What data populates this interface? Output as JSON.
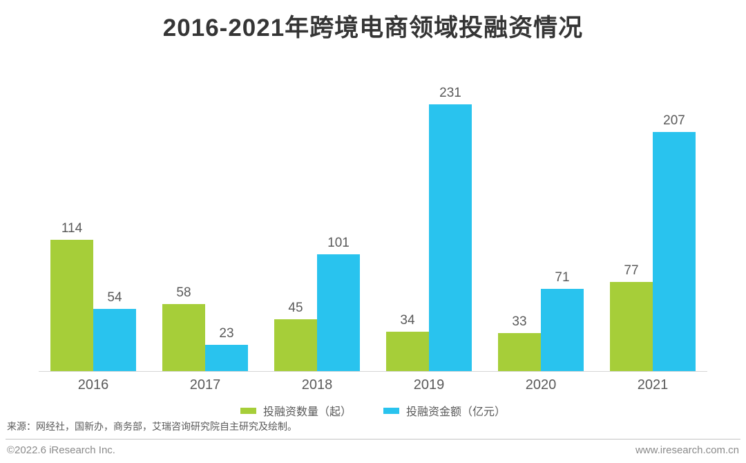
{
  "page": {
    "source": "来源：网经社，国新办，商务部，艾瑞咨询研究院自主研究及绘制。",
    "footer_left": "©2022.6 iResearch Inc.",
    "footer_right": "www.iresearch.com.cn"
  },
  "colors": {
    "green": "#a6ce39",
    "blue": "#29c3ee",
    "title_text": "#353535",
    "label_text": "#595959",
    "axis_line": "#d6d6d6"
  },
  "chart_data": {
    "type": "bar",
    "title": "2016-2021年跨境电商领域投融资情况",
    "categories": [
      "2016",
      "2017",
      "2018",
      "2019",
      "2020",
      "2021"
    ],
    "series": [
      {
        "name": "投融资数量（起）",
        "color_key": "green",
        "values": [
          114,
          58,
          45,
          34,
          33,
          77
        ]
      },
      {
        "name": "投融资金额（亿元）",
        "color_key": "blue",
        "values": [
          54,
          23,
          101,
          231,
          71,
          207
        ]
      }
    ],
    "xlabel": "",
    "ylabel": "",
    "ylim": [
      0,
      231
    ],
    "grid": false,
    "legend_position": "bottom",
    "value_labels": true
  }
}
